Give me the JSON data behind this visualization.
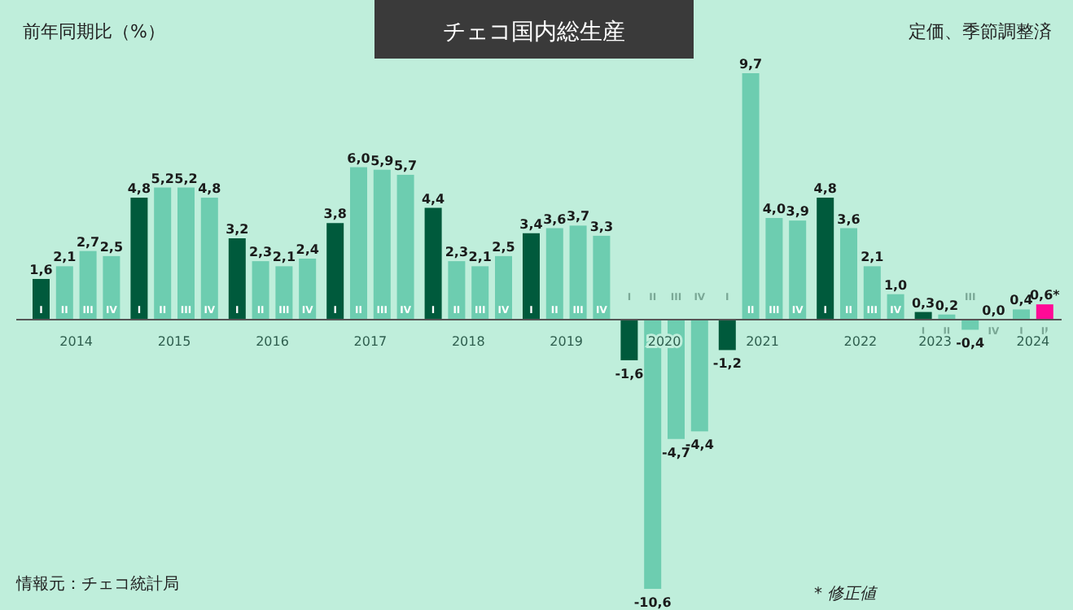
{
  "chart_data": {
    "type": "bar",
    "title": "チェコ国内総生産",
    "subtitle": "定価、季節調整済",
    "ylabel": "前年同期比（%）",
    "categories": [
      "I",
      "II",
      "III",
      "IV",
      "I",
      "II",
      "III",
      "IV",
      "I",
      "II",
      "III",
      "IV",
      "I",
      "II",
      "III",
      "IV",
      "I",
      "II",
      "III",
      "IV",
      "I",
      "II",
      "III",
      "IV",
      "I",
      "II",
      "III",
      "IV",
      "I",
      "II",
      "III",
      "IV",
      "I",
      "II",
      "III",
      "IV",
      "I",
      "II",
      "III",
      "IV",
      "I",
      "II"
    ],
    "values": [
      1.6,
      2.1,
      2.7,
      2.5,
      4.8,
      5.2,
      5.2,
      4.8,
      3.2,
      2.3,
      2.1,
      2.4,
      3.8,
      6.0,
      5.9,
      5.7,
      4.4,
      2.3,
      2.1,
      2.5,
      3.4,
      3.6,
      3.7,
      3.3,
      -1.6,
      -10.6,
      -4.7,
      -4.4,
      -1.2,
      9.7,
      4.0,
      3.9,
      4.8,
      3.6,
      2.1,
      1.0,
      0.3,
      0.2,
      -0.4,
      0.0,
      0.4,
      0.6
    ],
    "value_labels": [
      "1,6",
      "2,1",
      "2,7",
      "2,5",
      "4,8",
      "5,2",
      "5,2",
      "4,8",
      "3,2",
      "2,3",
      "2,1",
      "2,4",
      "3,8",
      "6,0",
      "5,9",
      "5,7",
      "4,4",
      "2,3",
      "2,1",
      "2,5",
      "3,4",
      "3,6",
      "3,7",
      "3,3",
      "-1,6",
      "-10,6",
      "-4,7",
      "-4,4",
      "-1,2",
      "9,7",
      "4,0",
      "3,9",
      "4,8",
      "3,6",
      "2,1",
      "1,0",
      "0,3",
      "0,2",
      "-0,4",
      "0,0",
      "0,4",
      "0,6*"
    ],
    "colors": [
      "#005a3c",
      "#6dcdb0",
      "#6dcdb0",
      "#6dcdb0",
      "#005a3c",
      "#6dcdb0",
      "#6dcdb0",
      "#6dcdb0",
      "#005a3c",
      "#6dcdb0",
      "#6dcdb0",
      "#6dcdb0",
      "#005a3c",
      "#6dcdb0",
      "#6dcdb0",
      "#6dcdb0",
      "#005a3c",
      "#6dcdb0",
      "#6dcdb0",
      "#6dcdb0",
      "#005a3c",
      "#6dcdb0",
      "#6dcdb0",
      "#6dcdb0",
      "#005a3c",
      "#6dcdb0",
      "#6dcdb0",
      "#6dcdb0",
      "#005a3c",
      "#6dcdb0",
      "#6dcdb0",
      "#6dcdb0",
      "#005a3c",
      "#6dcdb0",
      "#6dcdb0",
      "#6dcdb0",
      "#005a3c",
      "#6dcdb0",
      "#6dcdb0",
      "#6dcdb0",
      "#6dcdb0",
      "#ff0a96"
    ],
    "annotations": [
      "2014",
      "2015",
      "2016",
      "2017",
      "2018",
      "2019",
      "2020",
      "2021",
      "2022",
      "2023",
      "2024",
      "情報元：チェコ統計局",
      "* 修正値"
    ]
  }
}
